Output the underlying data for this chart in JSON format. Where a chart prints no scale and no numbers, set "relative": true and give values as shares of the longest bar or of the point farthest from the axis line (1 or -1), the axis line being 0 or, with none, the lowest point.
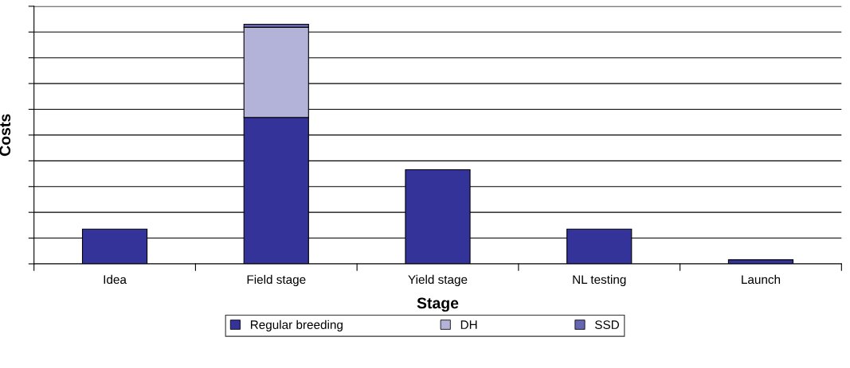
{
  "chart_data": {
    "type": "bar",
    "stacked": true,
    "relative": true,
    "xlabel": "Stage",
    "ylabel": "Costs",
    "categories": [
      "Idea",
      "Field stage",
      "Yield stage",
      "NL testing",
      "Launch"
    ],
    "series": [
      {
        "name": "Regular breeding",
        "color": "#333399",
        "values": [
          0.145,
          0.611,
          0.393,
          0.145,
          0.017
        ]
      },
      {
        "name": "DH",
        "color": "#b3b3d9",
        "values": [
          null,
          0.376,
          null,
          null,
          null
        ]
      },
      {
        "name": "SSD",
        "color": "#6666b3",
        "values": [
          null,
          0.013,
          null,
          null,
          null
        ]
      }
    ],
    "grid": "y",
    "legend": "bottom"
  }
}
